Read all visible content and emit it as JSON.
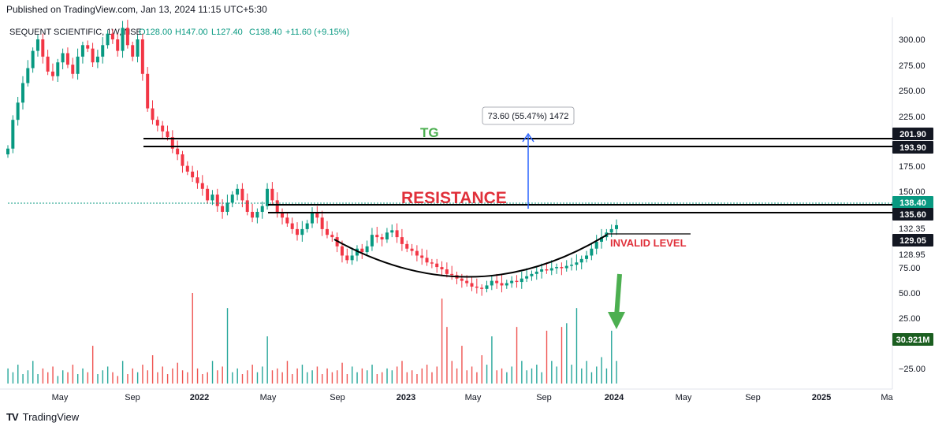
{
  "published": "Published on TradingView.com, Jan 13, 2024 11:15 UTC+5:30",
  "header": {
    "symbol": "SEQUENT SCIENTIFIC, 1W, NSE",
    "o": "O128.00",
    "h": "H147.00",
    "l": "L127.40",
    "c": "C138.40",
    "change": "+11.60 (+9.15%)"
  },
  "footer": {
    "brand": "TradingView"
  },
  "colors": {
    "up": "#089981",
    "down": "#f23645",
    "annot_red": "#e0303a",
    "annot_green": "#4caf50",
    "arrow_blue": "#2962ff"
  },
  "chart_data": {
    "type": "candlestick",
    "title": "SEQUENT SCIENTIFIC, 1W, NSE",
    "x_ticks": [
      "May",
      "Sep",
      "2022",
      "May",
      "Sep",
      "2023",
      "May",
      "Sep",
      "2024",
      "May",
      "Sep",
      "2025",
      "Ma"
    ],
    "y_ticks_upper": [
      "300.00",
      "275.00",
      "250.00",
      "225.00",
      "175.00",
      "150.00",
      "132.35",
      "128.95",
      "75.00",
      "50.00",
      "25.00",
      "−25.00"
    ],
    "price_tags": [
      {
        "label": "201.90",
        "style": "dark"
      },
      {
        "label": "193.90",
        "style": "dark"
      },
      {
        "label": "138.40",
        "style": "green"
      },
      {
        "label": "135.60",
        "style": "dark"
      },
      {
        "label": "129.05",
        "style": "dark"
      },
      {
        "label": "30.921M",
        "style": "volgreen"
      }
    ],
    "levels": {
      "target_top": 201.9,
      "target_bottom": 193.9,
      "resistance_top": 138.4,
      "resistance_bottom": 135.6,
      "invalid": 129.05
    },
    "annotations": {
      "tg": "TG",
      "resistance": "RESISTANCE",
      "invalid": "INVALID LEVEL",
      "measure": "73.60 (55.47%) 1472"
    },
    "closes": [
      205,
      230,
      245,
      262,
      275,
      290,
      300,
      285,
      272,
      268,
      280,
      288,
      278,
      270,
      285,
      295,
      292,
      280,
      285,
      295,
      305,
      300,
      290,
      310,
      295,
      285,
      300,
      270,
      240,
      230,
      225,
      220,
      215,
      205,
      200,
      190,
      185,
      180,
      175,
      170,
      160,
      165,
      155,
      150,
      158,
      165,
      170,
      160,
      150,
      145,
      150,
      155,
      170,
      160,
      150,
      145,
      140,
      135,
      130,
      135,
      140,
      150,
      145,
      135,
      130,
      128,
      120,
      112,
      108,
      112,
      118,
      115,
      120,
      130,
      128,
      126,
      132,
      134,
      128,
      122,
      118,
      116,
      112,
      110,
      106,
      105,
      102,
      100,
      96,
      95,
      92,
      90,
      88,
      85,
      84,
      83,
      86,
      90,
      88,
      86,
      88,
      90,
      89,
      92,
      94,
      96,
      98,
      100,
      99,
      101,
      102,
      101,
      103,
      104,
      106,
      109,
      112,
      118,
      124,
      128,
      132,
      135,
      138.4
    ],
    "volumes": [
      8,
      6,
      10,
      5,
      7,
      12,
      5,
      8,
      6,
      9,
      4,
      7,
      6,
      10,
      5,
      8,
      6,
      20,
      5,
      7,
      9,
      6,
      4,
      12,
      5,
      8,
      6,
      10,
      7,
      15,
      6,
      9,
      5,
      8,
      11,
      7,
      6,
      48,
      8,
      5,
      6,
      12,
      7,
      9,
      40,
      6,
      8,
      5,
      7,
      10,
      6,
      9,
      25,
      7,
      8,
      6,
      12,
      5,
      8,
      10,
      6,
      7,
      9,
      5,
      8,
      6,
      7,
      11,
      5,
      9,
      6,
      8,
      7,
      10,
      5,
      6,
      8,
      7,
      9,
      12,
      6,
      7,
      5,
      8,
      10,
      6,
      9,
      45,
      30,
      12,
      8,
      20,
      7,
      9,
      6,
      15,
      10,
      25,
      7,
      8,
      6,
      9,
      30,
      12,
      7,
      8,
      10,
      6,
      28,
      12,
      9,
      30,
      32,
      10,
      40,
      8,
      12,
      6,
      9,
      14,
      8,
      28,
      12
    ]
  }
}
